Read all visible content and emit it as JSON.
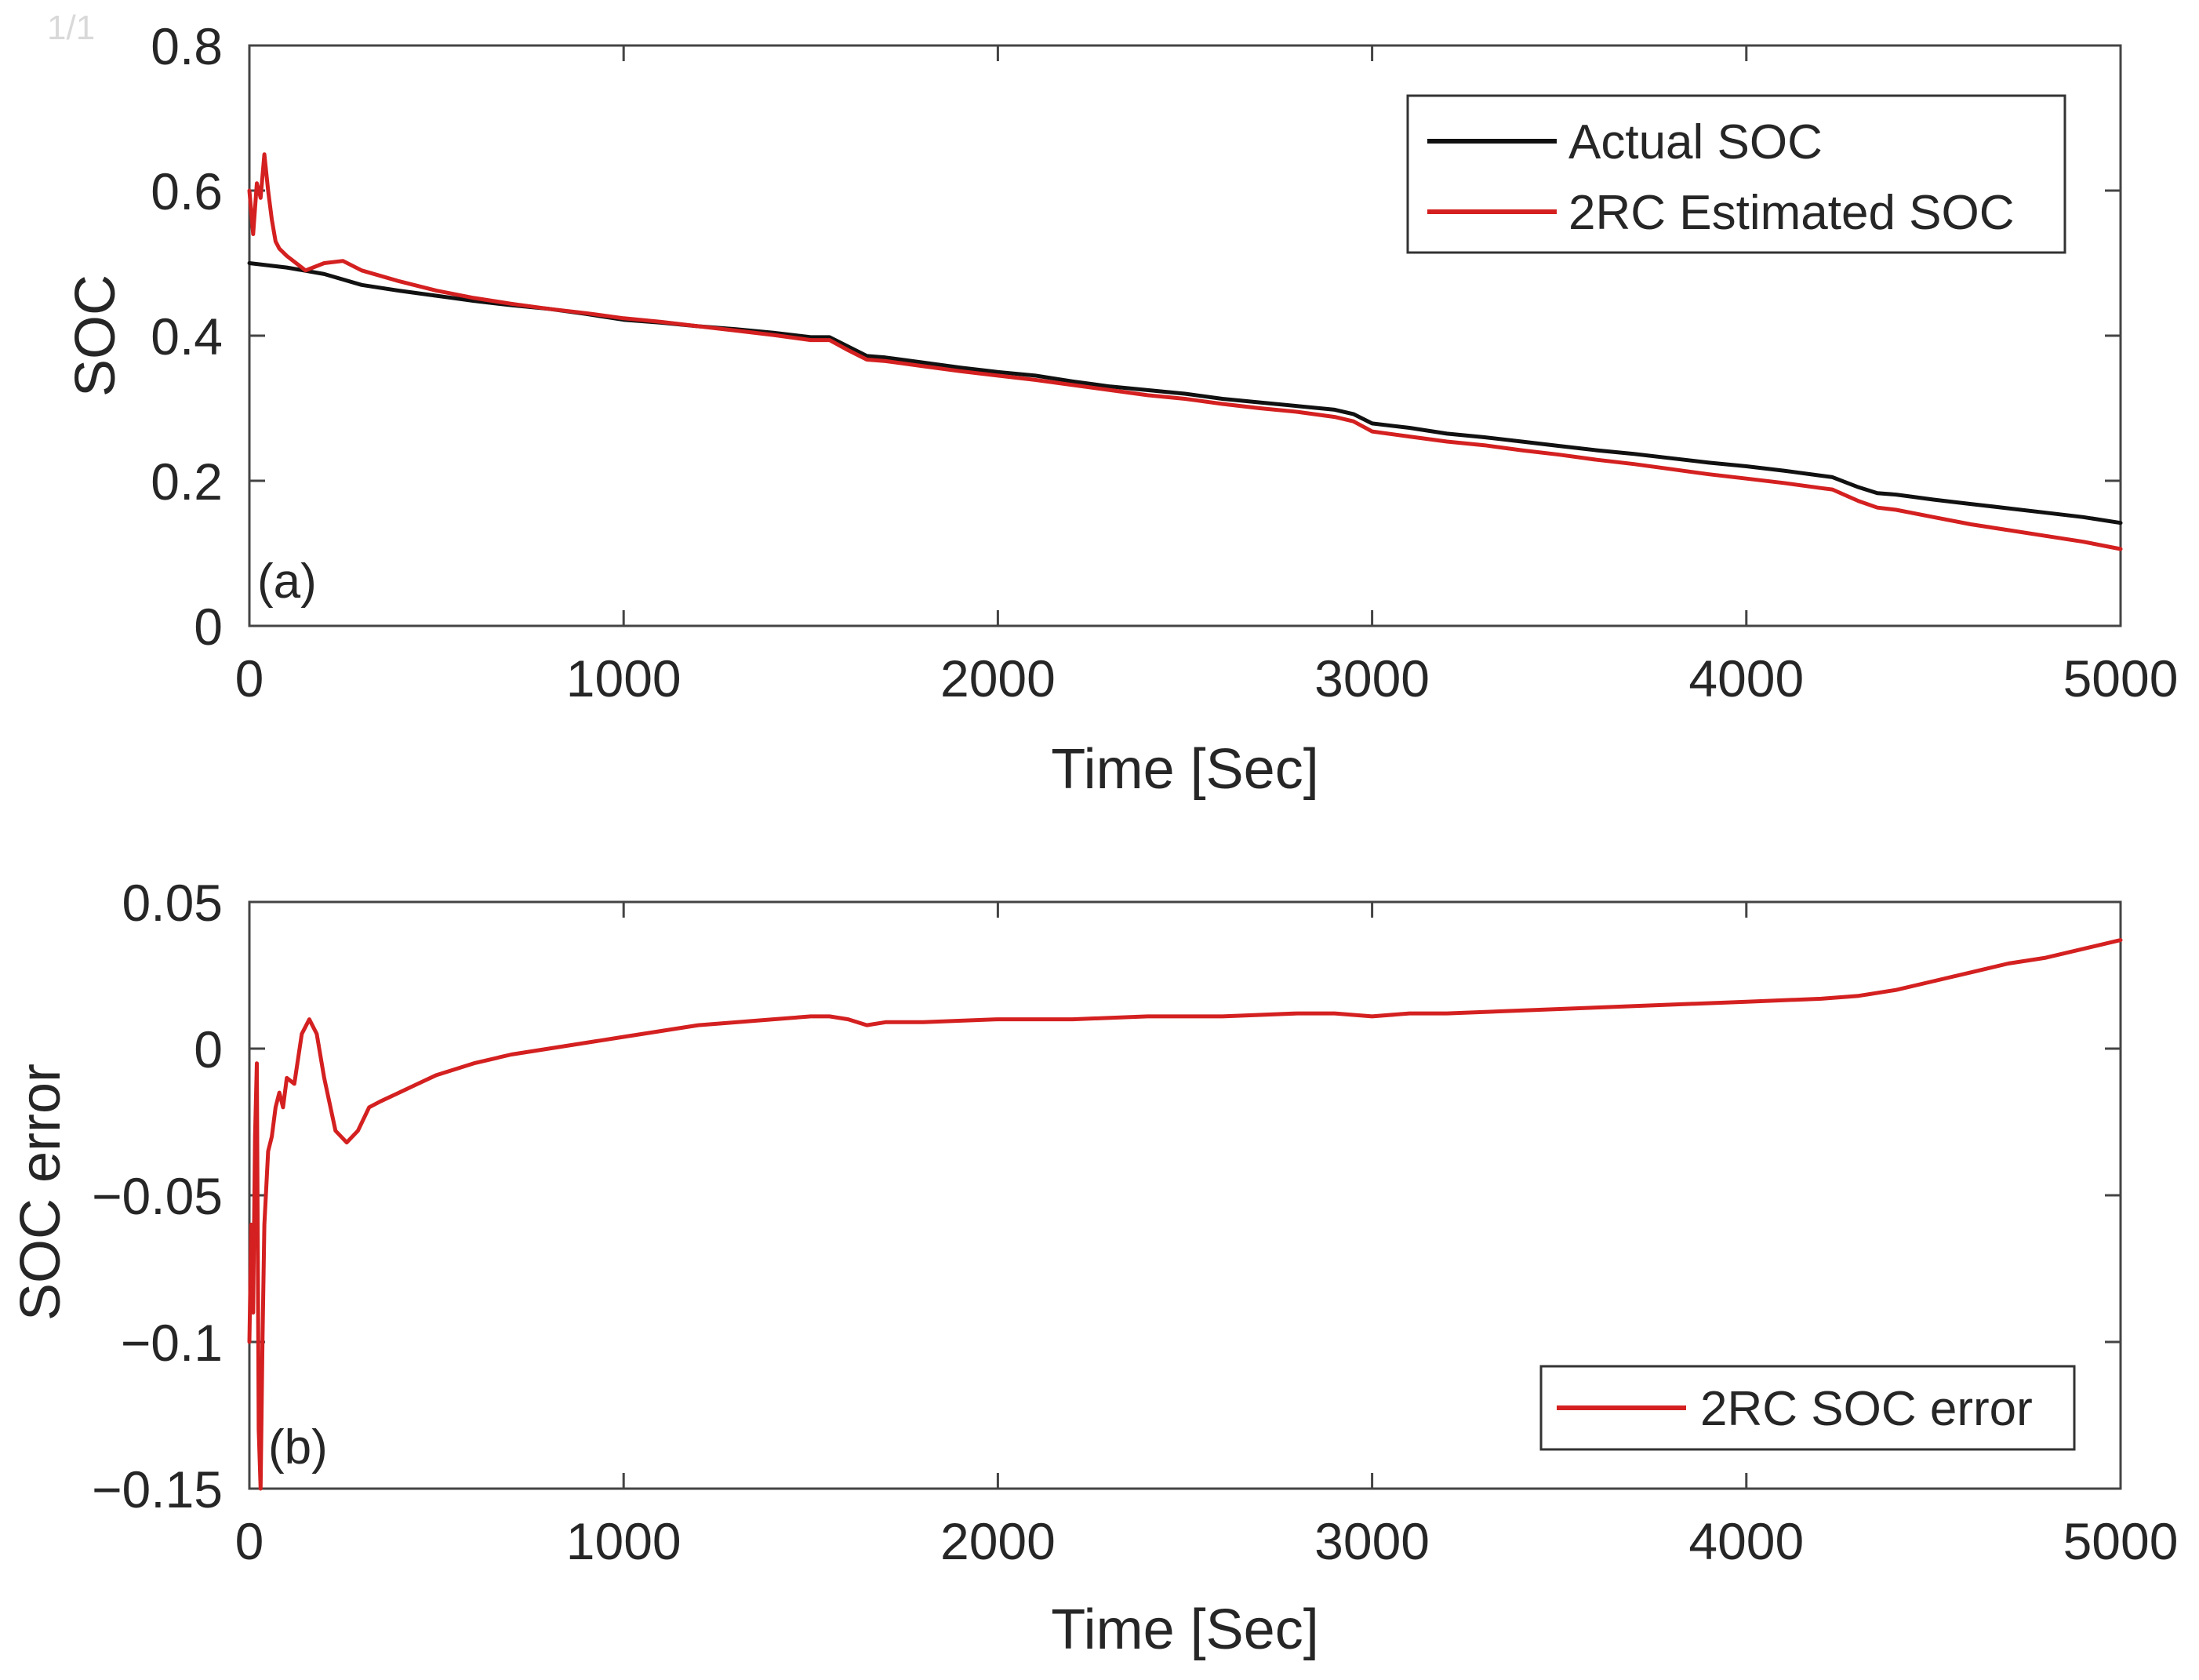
{
  "page_marker": "1/1",
  "colors": {
    "actual": "#111111",
    "estimated": "#d42020",
    "axis": "#444444",
    "background": "#ffffff"
  },
  "chart_data": [
    {
      "type": "line",
      "panel_label": "(a)",
      "title": "",
      "xlabel": "Time [Sec]",
      "ylabel": "SOC",
      "xlim": [
        0,
        5000
      ],
      "ylim": [
        0,
        0.8
      ],
      "xticks": [
        0,
        1000,
        2000,
        3000,
        4000,
        5000
      ],
      "xtick_labels": [
        "0",
        "1000",
        "2000",
        "3000",
        "4000",
        "5000"
      ],
      "yticks": [
        0,
        0.2,
        0.4,
        0.6,
        0.8
      ],
      "ytick_labels": [
        "0",
        "0.2",
        "0.4",
        "0.6",
        "0.8"
      ],
      "grid": false,
      "legend_position": "top-right",
      "series": [
        {
          "name": "Actual SOC",
          "color": "#111111",
          "x": [
            0,
            100,
            200,
            300,
            400,
            500,
            600,
            700,
            800,
            900,
            1000,
            1100,
            1200,
            1300,
            1400,
            1500,
            1550,
            1600,
            1650,
            1700,
            1800,
            1900,
            2000,
            2100,
            2200,
            2300,
            2400,
            2500,
            2600,
            2700,
            2800,
            2900,
            2950,
            3000,
            3100,
            3200,
            3300,
            3400,
            3500,
            3600,
            3700,
            3800,
            3900,
            4000,
            4100,
            4200,
            4230,
            4300,
            4350,
            4400,
            4500,
            4600,
            4700,
            4800,
            4900,
            5000
          ],
          "y": [
            0.5,
            0.494,
            0.485,
            0.47,
            0.462,
            0.455,
            0.448,
            0.442,
            0.437,
            0.43,
            0.422,
            0.418,
            0.413,
            0.409,
            0.404,
            0.398,
            0.398,
            0.385,
            0.372,
            0.37,
            0.363,
            0.356,
            0.35,
            0.345,
            0.337,
            0.33,
            0.325,
            0.32,
            0.313,
            0.308,
            0.303,
            0.298,
            0.292,
            0.279,
            0.273,
            0.265,
            0.26,
            0.254,
            0.248,
            0.242,
            0.237,
            0.231,
            0.225,
            0.22,
            0.214,
            0.207,
            0.205,
            0.191,
            0.183,
            0.181,
            0.174,
            0.168,
            0.162,
            0.156,
            0.15,
            0.142
          ]
        },
        {
          "name": "2RC Estimated SOC",
          "color": "#d42020",
          "x": [
            0,
            10,
            20,
            30,
            40,
            50,
            60,
            70,
            80,
            100,
            150,
            200,
            250,
            300,
            400,
            500,
            600,
            700,
            800,
            900,
            1000,
            1100,
            1200,
            1300,
            1400,
            1500,
            1550,
            1600,
            1650,
            1700,
            1800,
            1900,
            2000,
            2100,
            2200,
            2300,
            2400,
            2500,
            2600,
            2700,
            2800,
            2900,
            2950,
            3000,
            3100,
            3200,
            3300,
            3400,
            3500,
            3600,
            3700,
            3800,
            3900,
            4000,
            4100,
            4200,
            4230,
            4300,
            4350,
            4400,
            4500,
            4600,
            4700,
            4800,
            4900,
            5000
          ],
          "y": [
            0.6,
            0.54,
            0.61,
            0.59,
            0.65,
            0.6,
            0.56,
            0.53,
            0.52,
            0.51,
            0.49,
            0.5,
            0.503,
            0.49,
            0.475,
            0.462,
            0.452,
            0.444,
            0.437,
            0.431,
            0.424,
            0.419,
            0.413,
            0.407,
            0.401,
            0.394,
            0.394,
            0.38,
            0.367,
            0.365,
            0.358,
            0.351,
            0.345,
            0.339,
            0.332,
            0.325,
            0.318,
            0.313,
            0.306,
            0.3,
            0.295,
            0.288,
            0.282,
            0.268,
            0.261,
            0.254,
            0.249,
            0.242,
            0.236,
            0.229,
            0.223,
            0.216,
            0.209,
            0.203,
            0.197,
            0.19,
            0.188,
            0.172,
            0.163,
            0.16,
            0.15,
            0.14,
            0.132,
            0.124,
            0.116,
            0.106
          ]
        }
      ]
    },
    {
      "type": "line",
      "panel_label": "(b)",
      "title": "",
      "xlabel": "Time [Sec]",
      "ylabel": "SOC error",
      "xlim": [
        0,
        5000
      ],
      "ylim": [
        -0.15,
        0.05
      ],
      "xticks": [
        0,
        1000,
        2000,
        3000,
        4000,
        5000
      ],
      "xtick_labels": [
        "0",
        "1000",
        "2000",
        "3000",
        "4000",
        "5000"
      ],
      "yticks": [
        -0.15,
        -0.1,
        -0.05,
        0,
        0.05
      ],
      "ytick_labels": [
        "−0.15",
        "−0.1",
        "−0.05",
        "0",
        "0.05"
      ],
      "grid": false,
      "legend_position": "bottom-right",
      "series": [
        {
          "name": "2RC SOC error",
          "color": "#d42020",
          "x": [
            0,
            5,
            10,
            15,
            20,
            25,
            30,
            35,
            40,
            50,
            60,
            70,
            80,
            90,
            100,
            120,
            140,
            160,
            180,
            200,
            230,
            260,
            290,
            320,
            350,
            400,
            450,
            500,
            600,
            700,
            800,
            1000,
            1200,
            1400,
            1500,
            1550,
            1600,
            1650,
            1700,
            1800,
            2000,
            2200,
            2400,
            2600,
            2800,
            2900,
            3000,
            3100,
            3200,
            3400,
            3600,
            3800,
            4000,
            4200,
            4300,
            4400,
            4500,
            4600,
            4700,
            4800,
            4900,
            5000
          ],
          "y": [
            -0.1,
            -0.06,
            -0.09,
            -0.03,
            -0.005,
            -0.13,
            -0.15,
            -0.1,
            -0.06,
            -0.035,
            -0.03,
            -0.02,
            -0.015,
            -0.02,
            -0.01,
            -0.012,
            0.005,
            0.01,
            0.005,
            -0.01,
            -0.028,
            -0.032,
            -0.028,
            -0.02,
            -0.018,
            -0.015,
            -0.012,
            -0.009,
            -0.005,
            -0.002,
            0.0,
            0.004,
            0.008,
            0.01,
            0.011,
            0.011,
            0.01,
            0.008,
            0.009,
            0.009,
            0.01,
            0.01,
            0.011,
            0.011,
            0.012,
            0.012,
            0.011,
            0.012,
            0.012,
            0.013,
            0.014,
            0.015,
            0.016,
            0.017,
            0.018,
            0.02,
            0.023,
            0.026,
            0.029,
            0.031,
            0.034,
            0.037
          ]
        }
      ]
    }
  ]
}
